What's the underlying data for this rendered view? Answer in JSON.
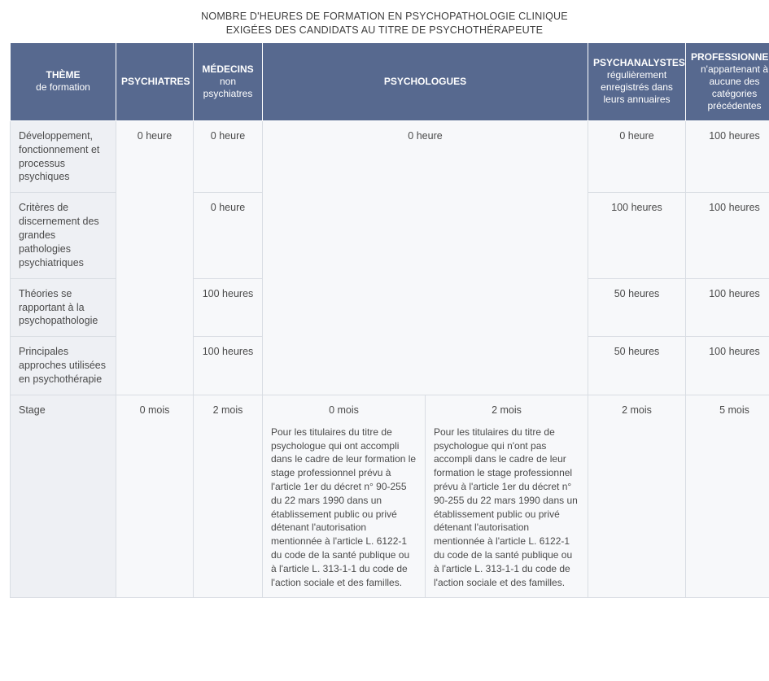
{
  "title": {
    "line1": "NOMBRE D'HEURES DE FORMATION EN PSYCHOPATHOLOGIE CLINIQUE",
    "line2": "EXIGÉES DES CANDIDATS AU TITRE DE PSYCHOTHÉRAPEUTE"
  },
  "headers": {
    "theme_l1": "THÈME",
    "theme_l2": "de formation",
    "psychiatres": "PSYCHIATRES",
    "medecins_l1": "MÉDECINS",
    "medecins_l2": "non",
    "medecins_l3": "psychiatres",
    "psychologues": "PSYCHOLOGUES",
    "psychanalystes_l1": "PSYCHANALYSTES",
    "psychanalystes_l2": "régulièrement enregistrés dans leurs annuaires",
    "professionnels_l1": "PROFESSIONNELS",
    "professionnels_l2": "n'appartenant à aucune des catégories précédentes"
  },
  "rows": {
    "r1": {
      "theme": "Développement, fonctionnement et processus psychiques",
      "psychiatres": "0 heure",
      "medecins": "0 heure",
      "psychologues": "0 heure",
      "psychanalystes": "0 heure",
      "professionnels": "100 heures"
    },
    "r2": {
      "theme": "Critères de discernement des grandes pathologies psychiatriques",
      "medecins": "0 heure",
      "psychanalystes": "100 heures",
      "professionnels": "100 heures"
    },
    "r3": {
      "theme": "Théories se rapportant à la psychopathologie",
      "medecins": "100 heures",
      "psychanalystes": "50 heures",
      "professionnels": "100 heures"
    },
    "r4": {
      "theme": "Principales approches utilisées en psychothérapie",
      "medecins": "100 heures",
      "psychanalystes": "50 heures",
      "professionnels": "100 heures"
    },
    "r5": {
      "theme": "Stage",
      "psychiatres": "0 mois",
      "medecins": "2 mois",
      "psychologues_a_val": "0 mois",
      "psychologues_a_note": "Pour les titulaires du titre de psychologue qui ont accompli dans le cadre de leur formation le stage professionnel prévu à l'article 1er du décret n° 90-255 du 22 mars 1990 dans un établissement public ou privé détenant l'autorisation mentionnée à l'article L. 6122-1 du code de la santé publique ou à l'article L. 313-1-1 du code de l'action sociale et des familles.",
      "psychologues_b_val": "2 mois",
      "psychologues_b_note": "Pour les titulaires du titre de psychologue qui n'ont pas accompli dans le cadre de leur formation le stage professionnel prévu à l'article 1er du décret n° 90-255 du 22 mars 1990 dans un établissement public ou privé détenant l'autorisation mentionnée à l'article L. 6122-1 du code de la santé publique ou à l'article L. 313-1-1 du code de l'action sociale et des familles.",
      "psychanalystes": "2 mois",
      "professionnels": "5 mois"
    }
  },
  "style": {
    "header_bg": "#57698f",
    "header_fg": "#ffffff",
    "theme_bg": "#eef0f4",
    "cell_bg": "#f7f8fa",
    "border": "#d9dde3",
    "text": "#4a4a4a",
    "font_size_header": 12,
    "font_size_cell": 12.5
  }
}
